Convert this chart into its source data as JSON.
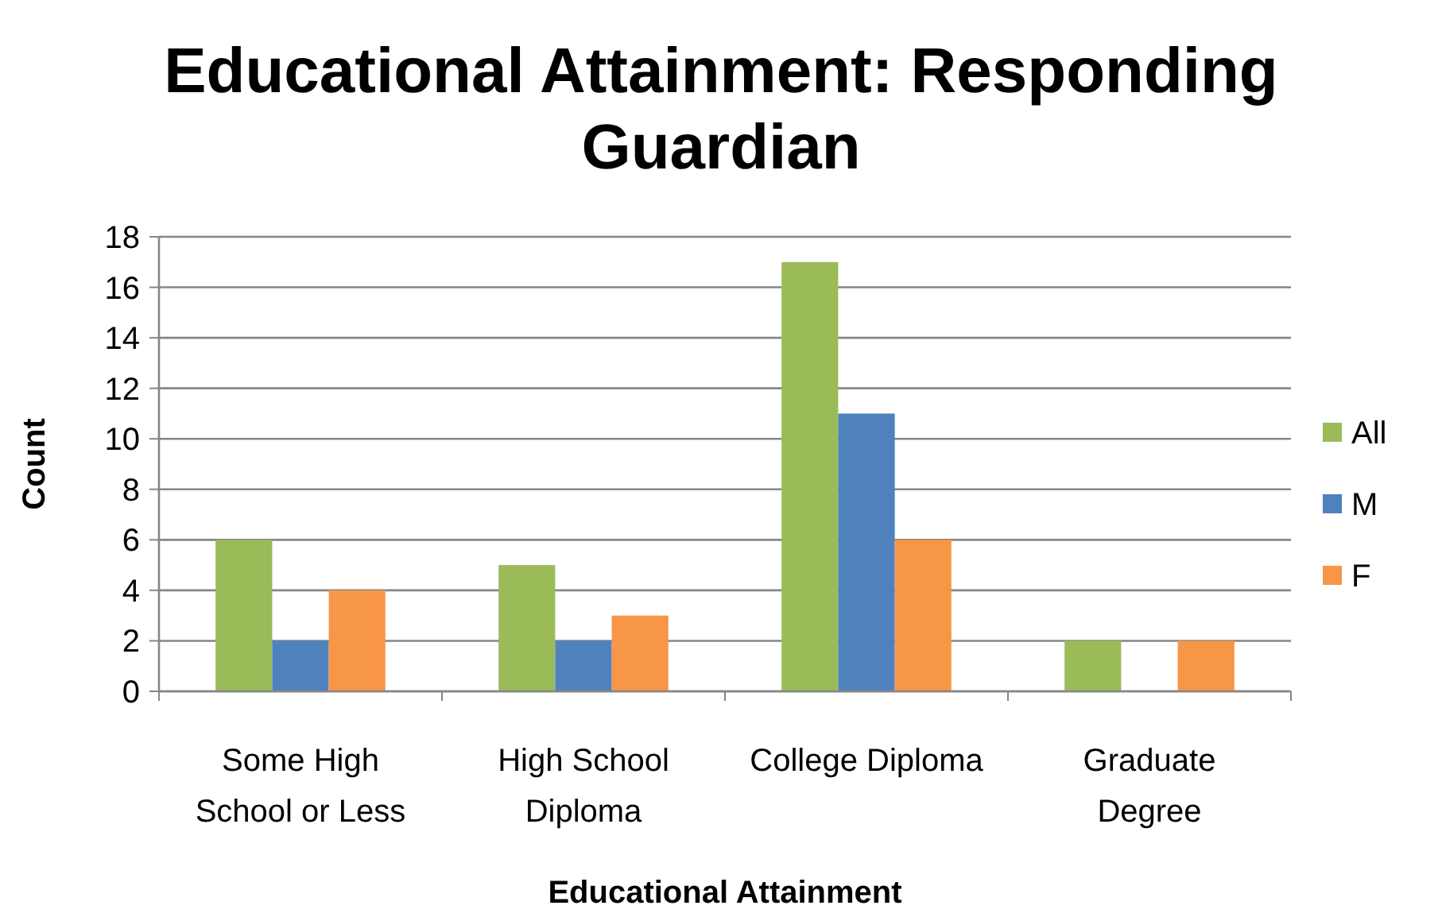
{
  "chart_data": {
    "type": "bar",
    "title": "Educational Attainment: Responding Guardian",
    "xlabel": "Educational Attainment",
    "ylabel": "Count",
    "categories": [
      "Some High School or Less",
      "High School Diploma",
      "College Diploma",
      "Graduate Degree"
    ],
    "series": [
      {
        "name": "All",
        "color": "#9bbb59",
        "values": [
          6,
          5,
          17,
          2
        ]
      },
      {
        "name": "M",
        "color": "#4f81bd",
        "values": [
          2,
          2,
          11,
          0
        ]
      },
      {
        "name": "F",
        "color": "#f79646",
        "values": [
          4,
          3,
          6,
          2
        ]
      }
    ],
    "ylim": [
      0,
      18
    ],
    "yticks": [
      0,
      2,
      4,
      6,
      8,
      10,
      12,
      14,
      16,
      18
    ],
    "grid": "y",
    "legend": "right"
  }
}
